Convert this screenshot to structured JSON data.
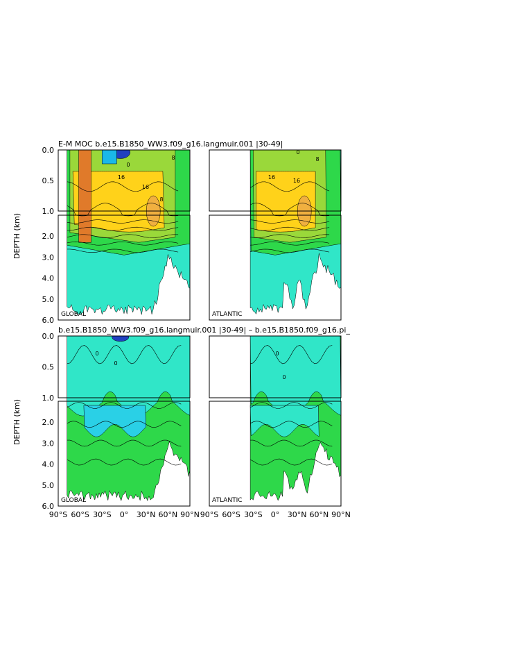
{
  "figure": {
    "top_title": "E-M MOC   b.e15.B1850_WW3.f09_g16.langmuir.001  |30-49|",
    "bottom_title": "b.e15.B1850_WW3.f09_g16.langmuir.001  |30-49|  –  b.e15.B1850.f09_g16.pi_",
    "ylabel": "DEPTH (km)"
  },
  "chart_data": {
    "type": "heatmap",
    "y_ticks_upper": [
      "0.0",
      "0.5",
      "1.0"
    ],
    "y_ticks_lower": [
      "2.0",
      "3.0",
      "4.0",
      "5.0",
      "6.0"
    ],
    "x_ticks": [
      "90°S",
      "60°S",
      "30°S",
      "0°",
      "30°N",
      "60°N",
      "90°N"
    ],
    "x_ticks_right": [
      "90°S",
      "60°S",
      "30°S",
      "0°",
      "30°N",
      "60°N",
      "90°N"
    ],
    "ylim_km": [
      0,
      6
    ],
    "xlim_deg": [
      -90,
      90
    ],
    "panels": [
      {
        "tag": "GLOBAL",
        "row": "top",
        "col": "left"
      },
      {
        "tag": "ATLANTIC",
        "row": "top",
        "col": "right"
      },
      {
        "tag": "GLOBAL",
        "row": "bottom",
        "col": "left"
      },
      {
        "tag": "ATLANTIC",
        "row": "bottom",
        "col": "right"
      }
    ],
    "contour_labels_top": [
      "16",
      "16",
      "8",
      "0",
      "8",
      "16",
      "16",
      "8",
      "0"
    ],
    "contour_labels_diff": [
      "0",
      "0",
      "0",
      "0"
    ],
    "colors": {
      "strong_pos": "#e07a2a",
      "pos": "#ffd21a",
      "weak_pos": "#9ad83a",
      "near_zero": "#2ed84a",
      "weak_neg": "#30e6c8",
      "neg": "#1ab8e8",
      "strong_neg": "#2040c0"
    }
  }
}
